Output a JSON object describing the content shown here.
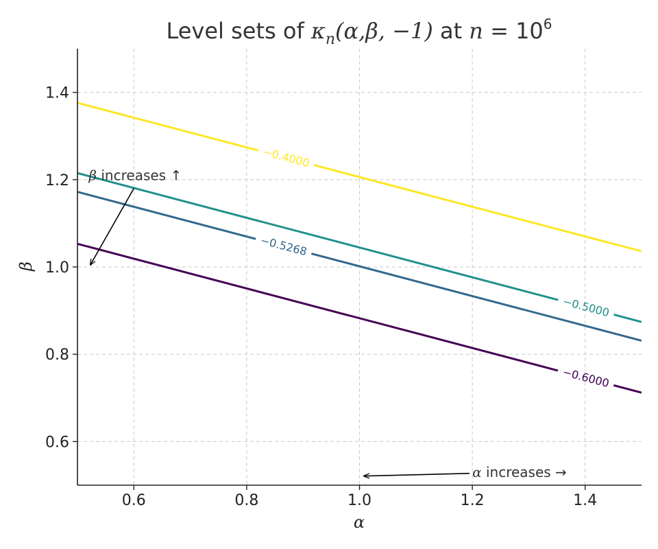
{
  "chart_data": {
    "type": "line",
    "title": {
      "prefix": "Level sets of ",
      "func": "κ",
      "func_sub": "n",
      "args": "(α,β, −1)",
      "mid": " at ",
      "n_expr": "n",
      "eq": " = 10",
      "exp": "6"
    },
    "xlabel": "α",
    "ylabel": "β",
    "xlim": [
      0.5,
      1.5
    ],
    "ylim": [
      0.5,
      1.5
    ],
    "xticks": [
      0.6,
      0.8,
      1.0,
      1.2,
      1.4
    ],
    "xtick_labels": [
      "0.6",
      "0.8",
      "1.0",
      "1.2",
      "1.4"
    ],
    "yticks": [
      0.6,
      0.8,
      1.0,
      1.2,
      1.4
    ],
    "ytick_labels": [
      "0.6",
      "0.8",
      "1.0",
      "1.2",
      "1.4"
    ],
    "grid": true,
    "series": [
      {
        "label": "−0.4000",
        "color": "#fde725",
        "x": [
          0.5,
          1.5
        ],
        "y": [
          1.376,
          1.036
        ],
        "label_at": [
          0.87,
          1.25
        ]
      },
      {
        "label": "−0.5000",
        "color": "#21918c",
        "x": [
          0.5,
          1.5
        ],
        "y": [
          1.215,
          0.874
        ],
        "label_at": [
          1.4,
          0.9
        ]
      },
      {
        "label": "−0.5268",
        "color": "#31688e",
        "x": [
          0.5,
          1.5
        ],
        "y": [
          1.172,
          0.831
        ],
        "label_at": [
          0.87,
          1.07
        ]
      },
      {
        "label": "−0.6000",
        "color": "#440154",
        "x": [
          0.5,
          1.5
        ],
        "y": [
          1.053,
          0.712
        ],
        "label_at": [
          1.4,
          0.74
        ]
      }
    ],
    "annotations": [
      {
        "text_math": "β",
        "text": " increases ↑",
        "text_at": [
          0.52,
          1.21
        ],
        "arrow_from": [
          0.6,
          1.18
        ],
        "arrow_to": [
          0.523,
          1.005
        ]
      },
      {
        "text_math": "α",
        "text": " increases →",
        "text_at": [
          1.2,
          0.53
        ],
        "arrow_from": [
          1.195,
          0.527
        ],
        "arrow_to": [
          1.008,
          0.521
        ]
      }
    ]
  }
}
